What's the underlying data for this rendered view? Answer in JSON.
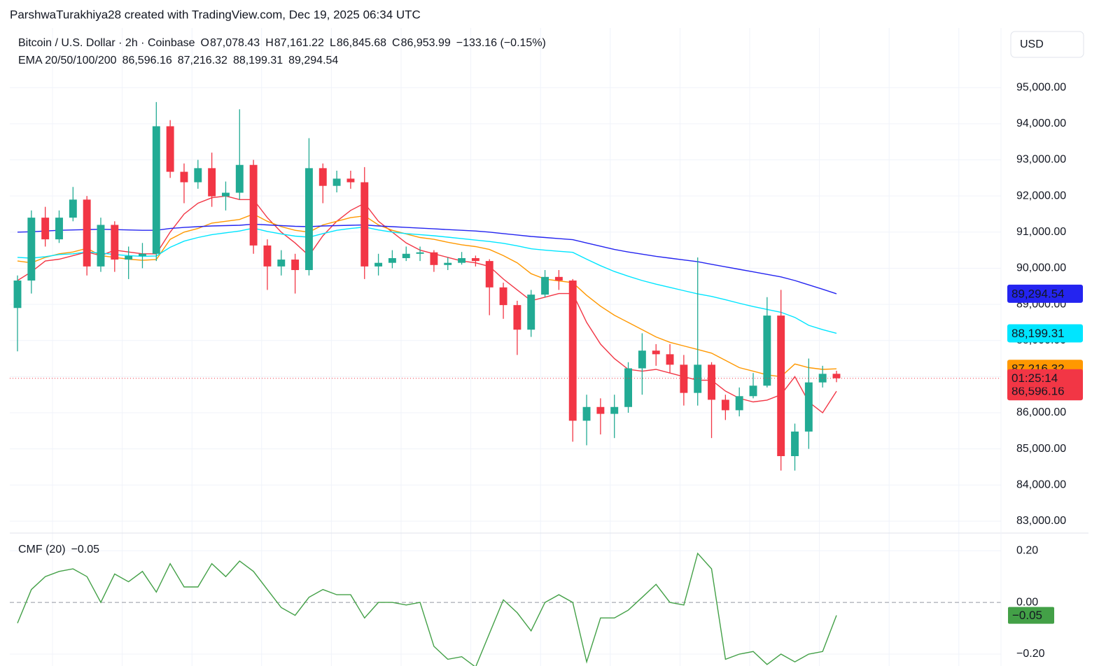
{
  "header": {
    "author_line": "ParshwaTurakhiya28 created with TradingView.com, Dec 19, 2025 06:34 UTC"
  },
  "chart_data": [
    {
      "type": "candlestick",
      "title": "Bitcoin / U.S. Dollar · 2h · Coinbase",
      "ohlc_letters": [
        "O",
        "H",
        "L",
        "C"
      ],
      "last_labels": [
        "87,078.43",
        "87,161.22",
        "86,845.68",
        "86,953.99"
      ],
      "change_label": "−133.16 (−0.15%)",
      "up_color": "#22ab94",
      "down_color": "#f23645",
      "currency": "USD",
      "countdown": "01:25:14",
      "grid": true,
      "ohlc": [
        [
          88900,
          89800,
          87700,
          89660
        ],
        [
          89660,
          91600,
          89300,
          91400
        ],
        [
          91400,
          91700,
          90600,
          90800
        ],
        [
          90800,
          91600,
          90700,
          91400
        ],
        [
          91400,
          92250,
          91300,
          91900
        ],
        [
          91900,
          92000,
          89800,
          90050
        ],
        [
          90050,
          91400,
          89900,
          91200
        ],
        [
          91200,
          91300,
          89900,
          90240
        ],
        [
          90240,
          90600,
          89700,
          90340
        ],
        [
          90340,
          90700,
          90000,
          90400
        ],
        [
          90400,
          94600,
          90200,
          93930
        ],
        [
          93930,
          94100,
          92500,
          92670
        ],
        [
          92670,
          92900,
          91800,
          92380
        ],
        [
          92380,
          93000,
          92200,
          92770
        ],
        [
          92770,
          93200,
          91700,
          91990
        ],
        [
          91990,
          92400,
          91600,
          92090
        ],
        [
          92090,
          94400,
          91900,
          92860
        ],
        [
          92860,
          93000,
          90400,
          90630
        ],
        [
          90630,
          90800,
          89400,
          90050
        ],
        [
          90050,
          90500,
          89800,
          90240
        ],
        [
          90240,
          90400,
          89300,
          89950
        ],
        [
          89950,
          93600,
          89800,
          92770
        ],
        [
          92770,
          92900,
          91800,
          92280
        ],
        [
          92280,
          92700,
          92100,
          92480
        ],
        [
          92480,
          92700,
          92200,
          92380
        ],
        [
          92380,
          92800,
          89700,
          90050
        ],
        [
          90050,
          90400,
          89800,
          90150
        ],
        [
          90150,
          90500,
          90000,
          90280
        ],
        [
          90280,
          90600,
          90200,
          90400
        ],
        [
          90400,
          90600,
          90200,
          90440
        ],
        [
          90440,
          90500,
          89900,
          90090
        ],
        [
          90090,
          90300,
          89950,
          90150
        ],
        [
          90150,
          90450,
          90100,
          90280
        ],
        [
          90280,
          90350,
          90050,
          90200
        ],
        [
          90200,
          90250,
          88700,
          89470
        ],
        [
          89470,
          89600,
          88600,
          88980
        ],
        [
          88980,
          89100,
          87600,
          88300
        ],
        [
          88300,
          89400,
          88100,
          89270
        ],
        [
          89270,
          89950,
          89200,
          89760
        ],
        [
          89760,
          89950,
          89400,
          89660
        ],
        [
          89660,
          89700,
          85200,
          85780
        ],
        [
          85780,
          86500,
          85100,
          86160
        ],
        [
          86160,
          86400,
          85400,
          85970
        ],
        [
          85970,
          86500,
          85300,
          86160
        ],
        [
          86160,
          87400,
          86000,
          87230
        ],
        [
          87230,
          88200,
          86500,
          87720
        ],
        [
          87720,
          87900,
          87300,
          87620
        ],
        [
          87620,
          87900,
          87100,
          87330
        ],
        [
          87330,
          87600,
          86200,
          86550
        ],
        [
          86550,
          90300,
          86200,
          87330
        ],
        [
          87330,
          87400,
          85300,
          86360
        ],
        [
          86360,
          86500,
          85800,
          86070
        ],
        [
          86070,
          86700,
          85900,
          86460
        ],
        [
          86460,
          87100,
          86400,
          86750
        ],
        [
          86750,
          89200,
          86700,
          88690
        ],
        [
          88690,
          89400,
          84400,
          84800
        ],
        [
          84800,
          85700,
          84400,
          85480
        ],
        [
          85480,
          87500,
          85000,
          86840
        ],
        [
          86840,
          87300,
          86700,
          87078
        ],
        [
          87078.43,
          87161.22,
          86845.68,
          86953.99
        ]
      ],
      "indicator": "EMA 20/50/100/200",
      "series": [
        {
          "color": "#f23645",
          "last_label": "86,596.16",
          "values": [
            89660,
            89900,
            90200,
            90250,
            90350,
            90450,
            90350,
            90500,
            90450,
            90400,
            90400,
            91000,
            91500,
            91800,
            91950,
            92000,
            91900,
            91900,
            91400,
            91000,
            90700,
            90350,
            90900,
            91300,
            91600,
            91800,
            91300,
            91000,
            90700,
            90500,
            90400,
            90300,
            90200,
            90150,
            90050,
            89700,
            89400,
            89100,
            89200,
            89300,
            89300,
            88500,
            87900,
            87500,
            87200,
            87150,
            87200,
            87100,
            87000,
            86900,
            86900,
            86600,
            86400,
            86300,
            86350,
            86500,
            87000,
            86300,
            86000,
            86596.16
          ]
        },
        {
          "color": "#ff9800",
          "last_label": "87,216.32",
          "values": [
            90200,
            90150,
            90300,
            90400,
            90450,
            90550,
            90350,
            90300,
            90250,
            90220,
            90240,
            90800,
            91000,
            91100,
            91250,
            91300,
            91350,
            91500,
            91300,
            91150,
            91050,
            91000,
            91200,
            91300,
            91400,
            91450,
            91200,
            91050,
            90950,
            90850,
            90800,
            90720,
            90650,
            90600,
            90520,
            90350,
            90150,
            89850,
            89700,
            89650,
            89600,
            89250,
            88950,
            88700,
            88500,
            88300,
            88100,
            87950,
            87850,
            87750,
            87650,
            87450,
            87250,
            87150,
            87050,
            87000,
            87350,
            87250,
            87200,
            87216.32
          ]
        },
        {
          "color": "#00e5ff",
          "last_label": "88,199.31",
          "values": [
            90300,
            90280,
            90320,
            90380,
            90400,
            90450,
            90420,
            90380,
            90350,
            90330,
            90340,
            90580,
            90750,
            90850,
            90930,
            90980,
            91030,
            91110,
            91020,
            90950,
            90890,
            90860,
            90960,
            91050,
            91100,
            91140,
            91060,
            91000,
            90960,
            90930,
            90900,
            90860,
            90820,
            90780,
            90740,
            90690,
            90620,
            90540,
            90500,
            90470,
            90440,
            90250,
            90070,
            89910,
            89780,
            89660,
            89560,
            89470,
            89380,
            89290,
            89220,
            89130,
            89030,
            88940,
            88860,
            88780,
            88640,
            88420,
            88300,
            88199.31
          ]
        },
        {
          "color": "#2424f0",
          "last_label": "89,294.54",
          "values": [
            91000,
            91010,
            91030,
            91050,
            91060,
            91070,
            91080,
            91070,
            91060,
            91050,
            91050,
            91100,
            91130,
            91150,
            91170,
            91180,
            91190,
            91220,
            91200,
            91180,
            91160,
            91150,
            91170,
            91180,
            91190,
            91200,
            91170,
            91150,
            91130,
            91110,
            91090,
            91070,
            91050,
            91030,
            91000,
            90960,
            90920,
            90880,
            90850,
            90820,
            90790,
            90700,
            90610,
            90520,
            90450,
            90390,
            90330,
            90280,
            90230,
            90180,
            90110,
            90040,
            89970,
            89900,
            89830,
            89760,
            89660,
            89540,
            89420,
            89294.54
          ]
        }
      ],
      "ylim": [
        82670,
        96650
      ],
      "yticks": [
        {
          "value": 83000,
          "label": "83,000.00"
        },
        {
          "value": 84000,
          "label": "84,000.00"
        },
        {
          "value": 85000,
          "label": "85,000.00"
        },
        {
          "value": 86000,
          "label": "86,000.00"
        },
        {
          "value": 87000,
          "label": "87,000.00"
        },
        {
          "value": 88000,
          "label": "88,000.00"
        },
        {
          "value": 89000,
          "label": "89,000.00"
        },
        {
          "value": 90000,
          "label": "90,000.00"
        },
        {
          "value": 91000,
          "label": "91,000.00"
        },
        {
          "value": 92000,
          "label": "92,000.00"
        },
        {
          "value": 93000,
          "label": "93,000.00"
        },
        {
          "value": 94000,
          "label": "94,000.00"
        },
        {
          "value": 95000,
          "label": "95,000.00"
        }
      ]
    },
    {
      "type": "line",
      "title": "CMF (20)",
      "value_label": "−0.05",
      "color": "#43a047",
      "values": [
        -0.08,
        0.05,
        0.1,
        0.12,
        0.13,
        0.1,
        0.0,
        0.11,
        0.08,
        0.12,
        0.04,
        0.15,
        0.06,
        0.06,
        0.15,
        0.1,
        0.16,
        0.12,
        0.05,
        -0.02,
        -0.05,
        0.02,
        0.05,
        0.03,
        0.03,
        -0.06,
        0.0,
        0.0,
        -0.01,
        0.0,
        -0.17,
        -0.22,
        -0.21,
        -0.25,
        -0.12,
        0.01,
        -0.04,
        -0.11,
        0.0,
        0.03,
        0.0,
        -0.23,
        -0.06,
        -0.06,
        -0.03,
        0.02,
        0.07,
        0.0,
        -0.01,
        0.19,
        0.13,
        -0.22,
        -0.2,
        -0.19,
        -0.24,
        -0.2,
        -0.23,
        -0.2,
        -0.19,
        -0.05
      ],
      "ylim": [
        -0.246,
        0.263
      ],
      "yticks": [
        {
          "value": -0.2,
          "label": "−0.20"
        },
        {
          "value": 0,
          "label": "0.00"
        },
        {
          "value": 0.2,
          "label": "0.20"
        }
      ]
    }
  ]
}
